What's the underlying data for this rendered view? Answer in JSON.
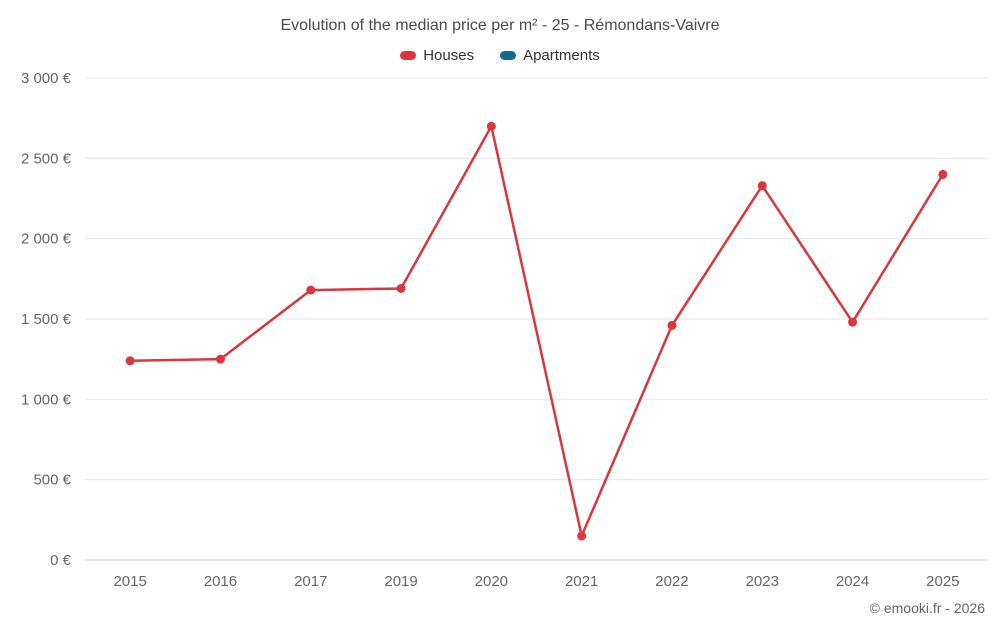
{
  "page": {
    "background": "#ffffff",
    "footer": "© emooki.fr - 2026"
  },
  "chart_data": {
    "type": "line",
    "title": "Evolution of the median price per m² - 25 - Rémondans-Vaivre",
    "categories": [
      "2015",
      "2016",
      "2017",
      "2019",
      "2020",
      "2021",
      "2022",
      "2023",
      "2024",
      "2025"
    ],
    "series": [
      {
        "name": "Houses",
        "color": "#d9363e",
        "values": [
          1240,
          1250,
          1680,
          1690,
          2700,
          150,
          1460,
          2330,
          1480,
          2400
        ]
      },
      {
        "name": "Apartments",
        "color": "#14698f",
        "values": []
      }
    ],
    "xlabel": "",
    "ylabel": "",
    "ylim": [
      0,
      3000
    ],
    "yticks": [
      0,
      500,
      1000,
      1500,
      2000,
      2500,
      3000
    ],
    "ytick_labels": [
      "0 €",
      "500 €",
      "1 000 €",
      "1 500 €",
      "2 000 €",
      "2 500 €",
      "3 000 €"
    ],
    "grid": true,
    "legend_position": "top",
    "marker": "circle"
  }
}
